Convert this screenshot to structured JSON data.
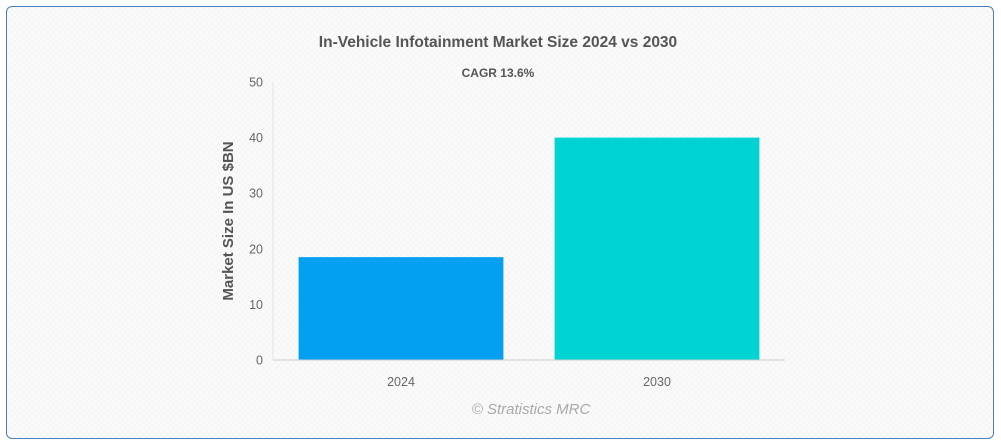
{
  "chart_data": {
    "type": "bar",
    "title": "In-Vehicle Infotainment Market Size 2024 vs 2030",
    "subtitle": "CAGR 13.6%",
    "xlabel": "",
    "ylabel": "Market Size In US $BN",
    "categories": [
      "2024",
      "2030"
    ],
    "values": [
      18.5,
      40
    ],
    "colors": [
      "#039ff0",
      "#00d3d3"
    ],
    "ylim": [
      0,
      50
    ],
    "yticks": [
      "0",
      "10",
      "20",
      "30",
      "40",
      "50"
    ],
    "grid": false,
    "legend": "none"
  },
  "watermark": "© Stratistics MRC"
}
